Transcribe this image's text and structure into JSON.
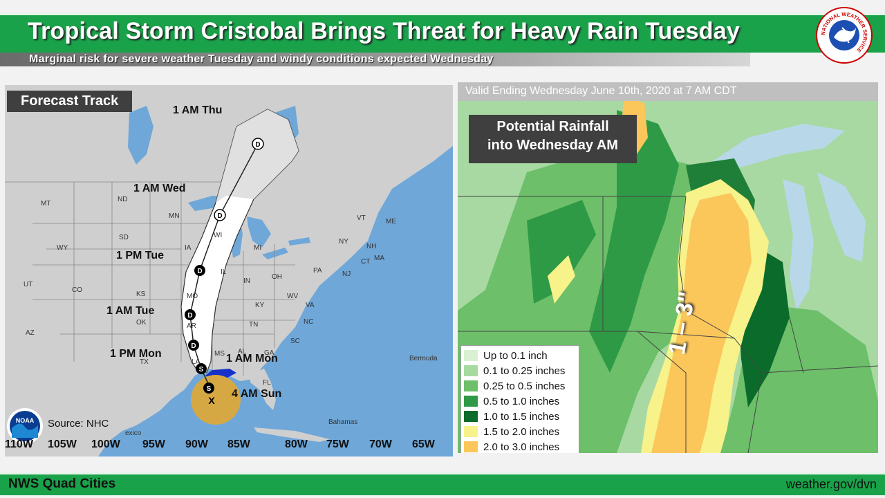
{
  "header": {
    "title": "Tropical Storm Cristobal Brings Threat for Heavy Rain Tuesday",
    "subtitle": "Marginal risk for severe weather Tuesday and windy conditions expected Wednesday",
    "logo_text": "NATIONAL WEATHER SERVICE"
  },
  "left_panel": {
    "label": "Forecast Track",
    "source": "Source: NHC",
    "noaa_logo_text": "NOAA",
    "track_points": [
      {
        "label": "1 AM Thu",
        "symbol": "D"
      },
      {
        "label": "1 AM Wed",
        "symbol": "D"
      },
      {
        "label": "1 PM Tue",
        "symbol": "D"
      },
      {
        "label": "1 AM Tue",
        "symbol": "D"
      },
      {
        "label": "1 PM Mon",
        "symbol": "D"
      },
      {
        "label": "1 AM Mon",
        "symbol": "S"
      },
      {
        "label": "4 AM Sun",
        "symbol": "X"
      }
    ],
    "extra_symbol": "S",
    "longitudes": [
      "110W",
      "105W",
      "100W",
      "95W",
      "90W",
      "85W",
      "80W",
      "75W",
      "70W",
      "65W"
    ],
    "states": [
      "MT",
      "ND",
      "MN",
      "WI",
      "MI",
      "ME",
      "WY",
      "SD",
      "IA",
      "IL",
      "IN",
      "OH",
      "PA",
      "NY",
      "VT",
      "NH",
      "MA",
      "CT",
      "NJ",
      "UT",
      "CO",
      "KS",
      "MO",
      "KY",
      "WV",
      "VA",
      "TN",
      "NC",
      "AZ",
      "OK",
      "AR",
      "SC",
      "AL",
      "GA",
      "MS",
      "TX",
      "LA",
      "FL"
    ],
    "places": [
      "Bermuda",
      "Bahamas",
      "exico"
    ]
  },
  "right_panel": {
    "valid_text": "Valid Ending Wednesday June 10th, 2020 at 7 AM CDT",
    "label_line1": "Potential Rainfall",
    "label_line2": "into Wednesday AM",
    "rain_annotation": "1 – 3\"",
    "legend": [
      {
        "label": "Up to 0.1 inch",
        "color": "#d9f0d3"
      },
      {
        "label": "0.1 to 0.25 inches",
        "color": "#a6dba0"
      },
      {
        "label": "0.25 to 0.5 inches",
        "color": "#6dbf6a"
      },
      {
        "label": "0.5 to 1.0 inches",
        "color": "#2f9a46"
      },
      {
        "label": "1.0 to 1.5 inches",
        "color": "#0b6b2a"
      },
      {
        "label": "1.5 to 2.0 inches",
        "color": "#f7f28a"
      },
      {
        "label": "2.0 to 3.0 inches",
        "color": "#fbc65a"
      }
    ]
  },
  "footer": {
    "left": "NWS Quad Cities",
    "right": "weather.gov/dvn"
  }
}
